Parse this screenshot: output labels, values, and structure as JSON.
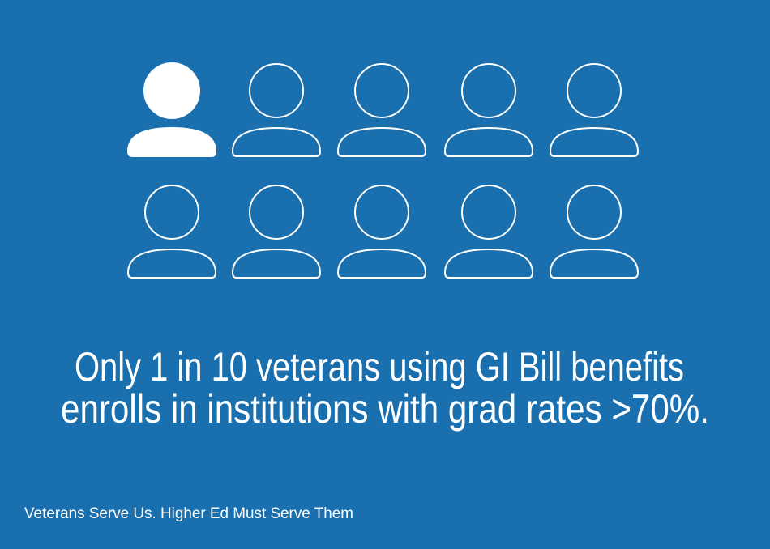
{
  "headline": {
    "lines": [
      "Only 1 in 10 veterans using GI Bill benefits",
      "enrolls in institutions with grad rates >70%."
    ]
  },
  "footer": "Veterans Serve Us. Higher Ed Must Serve Them"
}
